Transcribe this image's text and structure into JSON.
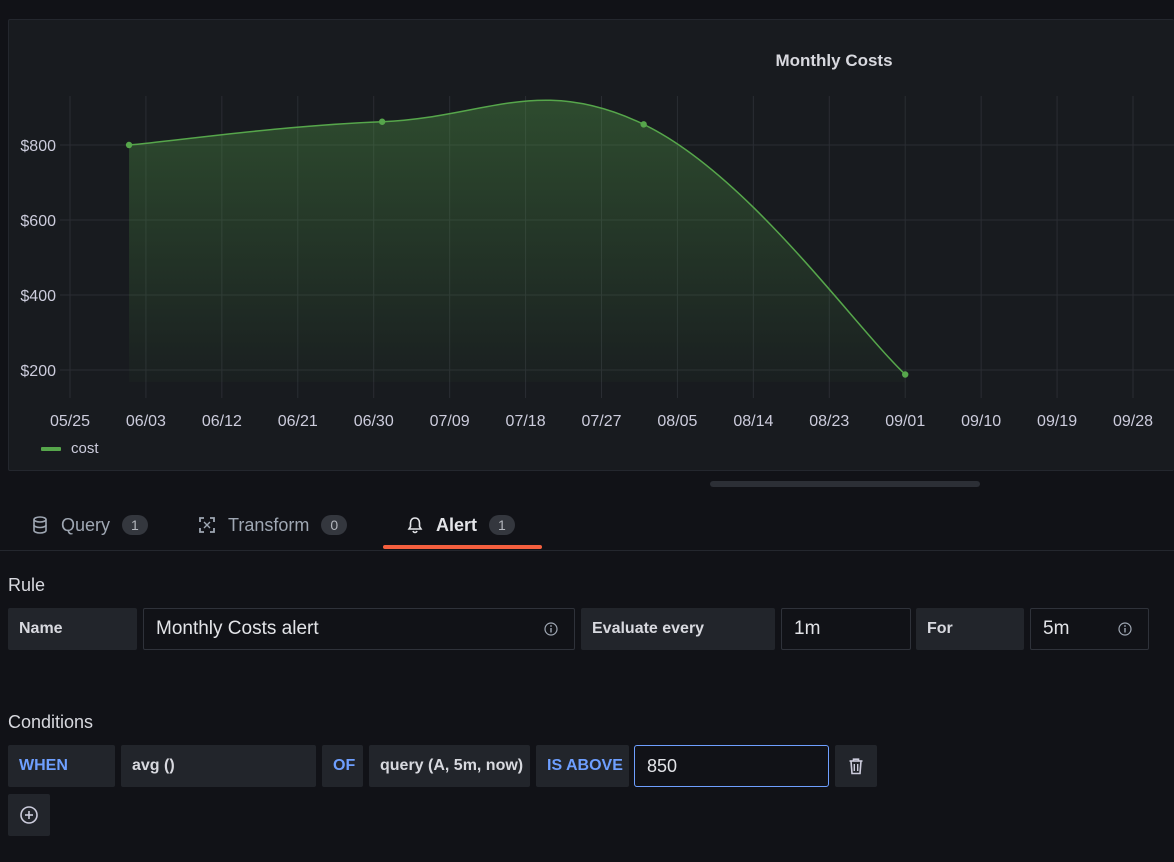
{
  "panel": {
    "title": "Monthly Costs"
  },
  "chart_data": {
    "type": "area",
    "title": "Monthly Costs",
    "x_ticks": [
      "05/25",
      "06/03",
      "06/12",
      "06/21",
      "06/30",
      "07/09",
      "07/18",
      "07/27",
      "08/05",
      "08/14",
      "08/23",
      "09/01",
      "09/10",
      "09/19",
      "09/28"
    ],
    "y_ticks": [
      "$200",
      "$400",
      "$600",
      "$800"
    ],
    "series": [
      {
        "name": "cost",
        "color": "#56a64b",
        "x": [
          "06/01",
          "07/01",
          "08/01",
          "09/01"
        ],
        "values": [
          800,
          862,
          855,
          188
        ]
      }
    ],
    "legend_position": "bottom-left",
    "grid": true
  },
  "tabs": [
    {
      "label": "Query",
      "count": "1",
      "icon": "database-icon"
    },
    {
      "label": "Transform",
      "count": "0",
      "icon": "transform-icon"
    },
    {
      "label": "Alert",
      "count": "1",
      "icon": "bell-icon"
    }
  ],
  "rule": {
    "section_title": "Rule",
    "name_label": "Name",
    "name_value": "Monthly Costs alert",
    "evaluate_label": "Evaluate every",
    "evaluate_value": "1m",
    "for_label": "For",
    "for_value": "5m"
  },
  "conditions": {
    "section_title": "Conditions",
    "when": "WHEN",
    "reducer": "avg ()",
    "of": "OF",
    "query": "query (A, 5m, now)",
    "evaluator": "IS ABOVE",
    "threshold": "850"
  },
  "colors": {
    "accent": "#f55f3e",
    "series": "#56a64b",
    "keyword": "#6e9fff"
  }
}
